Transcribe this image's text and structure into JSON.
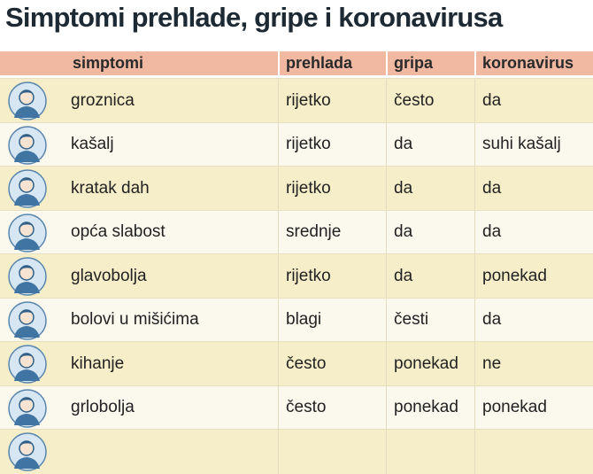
{
  "header": {
    "title": "Simptomi prehlade, gripe i koronavirusa"
  },
  "table": {
    "columns": [
      "simptomi",
      "prehlada",
      "gripa",
      "koronavirus"
    ],
    "rows": [
      [
        "groznica",
        "rijetko",
        "često",
        "da"
      ],
      [
        "kašalj",
        "rijetko",
        "da",
        "suhi kašalj"
      ],
      [
        "kratak dah",
        "rijetko",
        "da",
        "da"
      ],
      [
        "opća slabost",
        "srednje",
        "da",
        "da"
      ],
      [
        "glavobolja",
        "rijetko",
        "da",
        "ponekad"
      ],
      [
        "bolovi u mišićima",
        "blagi",
        "česti",
        "da"
      ],
      [
        "kihanje",
        "često",
        "ponekad",
        "ne"
      ],
      [
        "grlobolja",
        "često",
        "ponekad",
        "ponekad"
      ]
    ]
  }
}
